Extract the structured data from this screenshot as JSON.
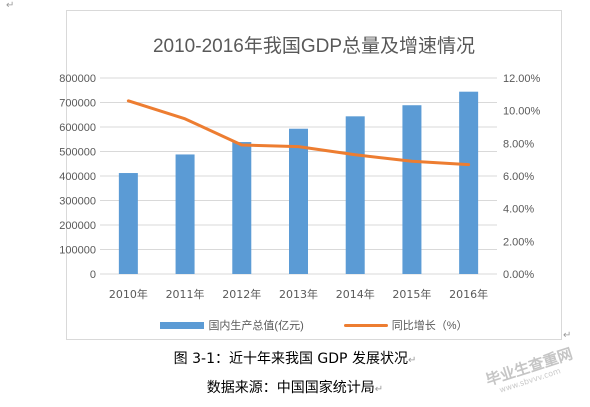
{
  "chart_data": {
    "type": "bar+line",
    "title": "2010-2016年我国GDP总量及增速情况",
    "categories": [
      "2010年",
      "2011年",
      "2012年",
      "2013年",
      "2014年",
      "2015年",
      "2016年"
    ],
    "series": [
      {
        "name": "国内生产总值(亿元)",
        "type": "bar",
        "axis": "left",
        "color": "#5b9bd5",
        "values": [
          412119,
          487940,
          538580,
          592963,
          643563,
          688858,
          744127
        ]
      },
      {
        "name": "同比增长（%）",
        "type": "line",
        "axis": "right",
        "color": "#ed7d31",
        "values": [
          10.6,
          9.5,
          7.9,
          7.8,
          7.3,
          6.9,
          6.7
        ]
      }
    ],
    "y_left": {
      "min": 0,
      "max": 800000,
      "ticks": [
        "0",
        "100000",
        "200000",
        "300000",
        "400000",
        "500000",
        "600000",
        "700000",
        "800000"
      ]
    },
    "y_right": {
      "min": 0,
      "max": 12,
      "ticks": [
        "0.00%",
        "2.00%",
        "4.00%",
        "6.00%",
        "8.00%",
        "10.00%",
        "12.00%"
      ]
    },
    "grid": "horizontal",
    "legend_position": "bottom"
  },
  "legend": {
    "bar_label": "国内生产总值(亿元)",
    "line_label": "同比增长（%）"
  },
  "caption": {
    "figure": "图 3-1：近十年来我国 GDP 发展状况",
    "source": "数据来源：中国国家统计局"
  },
  "watermark": {
    "text": "毕业生查重网",
    "sub": "www.sbvvv.com"
  },
  "paragraph_mark": "↵"
}
